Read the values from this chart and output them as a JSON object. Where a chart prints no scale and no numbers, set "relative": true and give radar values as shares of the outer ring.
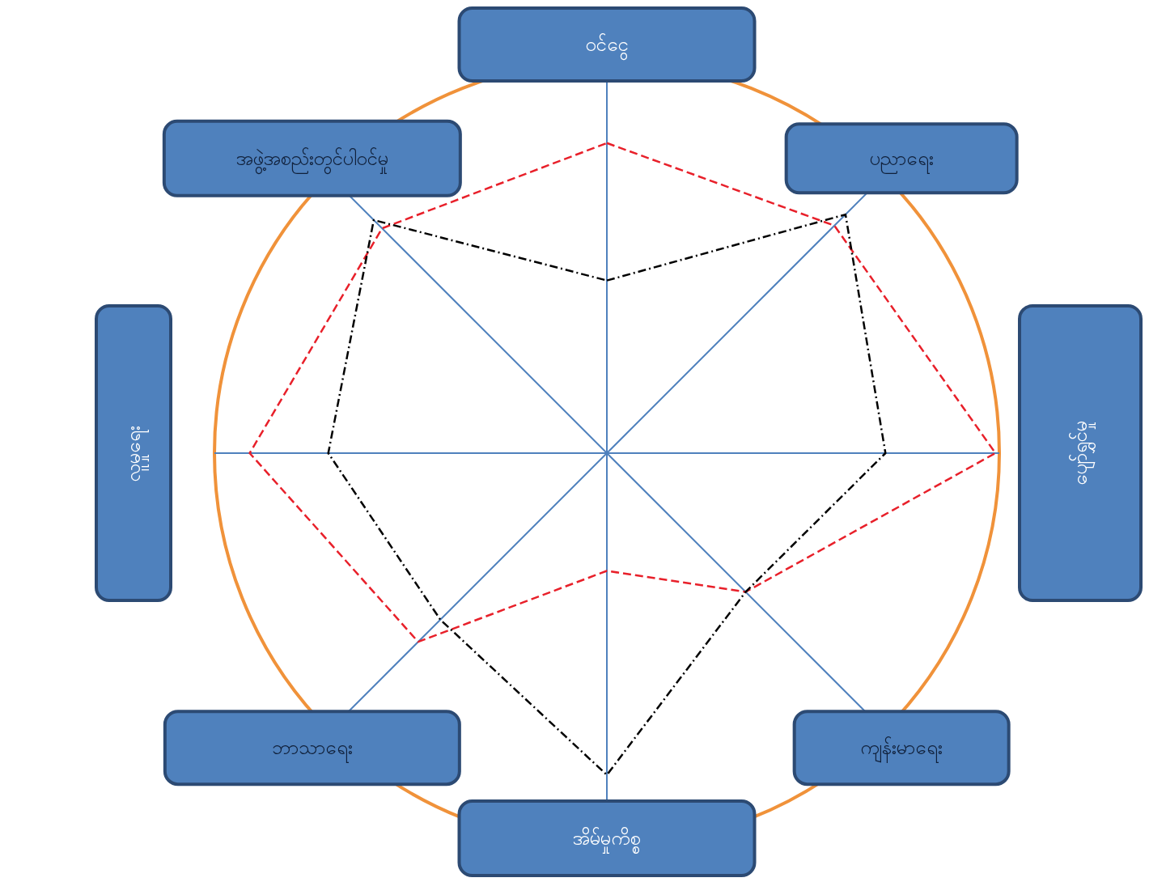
{
  "chart_data": {
    "type": "radar",
    "relative": true,
    "grid": true,
    "line_style": "dashed",
    "categories": [
      "ဝင်ငွေ",
      "ပညာရေး",
      "ပျော်ရွှင်မှု",
      "ကျန်းမာရေး",
      "အိမ်မှုကိစ္စ",
      "ဘာသာရေး",
      "လူမှုရေး",
      "အဖွဲ့အစည်းတွင်ပါဝင်မှု"
    ],
    "series": [
      {
        "color": "#e8202a",
        "values": [
          0.79,
          0.82,
          0.99,
          0.5,
          0.3,
          0.68,
          0.91,
          0.81
        ]
      },
      {
        "color": "#000000",
        "values": [
          0.44,
          0.86,
          0.71,
          0.5,
          0.82,
          0.6,
          0.71,
          0.84
        ]
      }
    ]
  }
}
